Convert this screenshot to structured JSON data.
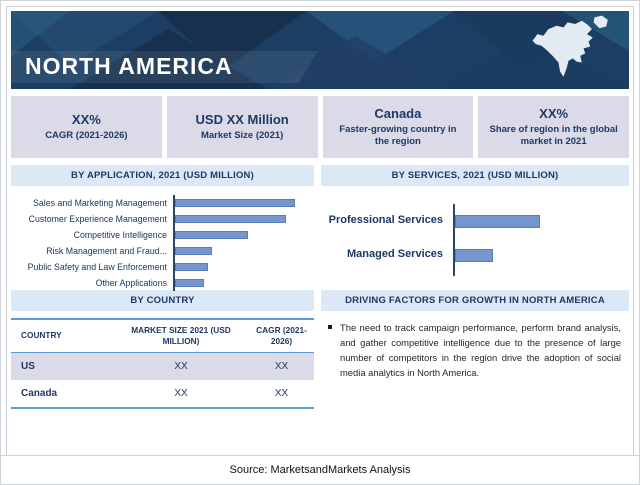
{
  "header": {
    "title": "NORTH AMERICA"
  },
  "stat_cards": [
    {
      "value": "XX%",
      "label": "CAGR (2021-2026)"
    },
    {
      "value": "USD XX Million",
      "label": "Market Size (2021)"
    },
    {
      "value": "Canada",
      "label": "Faster-growing country in the region"
    },
    {
      "value": "XX%",
      "label": "Share of region in the global market in 2021"
    }
  ],
  "sections": {
    "by_application": "BY APPLICATION, 2021 (USD MILLION)",
    "by_services": "BY SERVICES, 2021 (USD MILLION)",
    "by_country": "BY COUNTRY",
    "driving_factors": "DRIVING FACTORS FOR GROWTH IN NORTH AMERICA"
  },
  "chart_data": [
    {
      "type": "bar",
      "orientation": "horizontal",
      "title": "BY APPLICATION, 2021 (USD MILLION)",
      "categories": [
        "Sales and Marketing Management",
        "Customer Experience Management",
        "Competitive Intelligence",
        "Risk Management and Fraud...",
        "Public Safety and Law Enforcement",
        "Other Applications"
      ],
      "values_relative": [
        100,
        93,
        61,
        31,
        28,
        24
      ],
      "values_labeled": false,
      "note": "Axis values not shown (XX placeholders); values are relative bar lengths, max = 100",
      "bar_color": "#7697ce",
      "grid": false,
      "legend": false
    },
    {
      "type": "bar",
      "orientation": "horizontal",
      "title": "BY SERVICES, 2021 (USD MILLION)",
      "categories": [
        "Professional Services",
        "Managed Services"
      ],
      "values_relative": [
        100,
        44
      ],
      "values_labeled": false,
      "note": "Axis values not shown; values are relative bar lengths, max = 100",
      "bar_color": "#7697ce",
      "grid": false,
      "legend": false
    }
  ],
  "country_table": {
    "headers": [
      "COUNTRY",
      "MARKET SIZE 2021 (USD MILLION)",
      "CAGR (2021-2026)"
    ],
    "rows": [
      {
        "country": "US",
        "market_size": "XX",
        "cagr": "XX"
      },
      {
        "country": "Canada",
        "market_size": "XX",
        "cagr": "XX"
      }
    ]
  },
  "driving_factors": {
    "bullets": [
      "The need to track campaign performance, perform brand analysis, and gather competitive intelligence due to the presence of large number of competitors in the region drive the adoption of social media analytics in North America."
    ]
  },
  "source": "Source: MarketsandMarkets Analysis",
  "colors": {
    "header_bg": "#1c3e63",
    "card_bg": "#dadae9",
    "section_bg": "#dbe8f6",
    "bar": "#7697ce",
    "navy_text": "#1f3864",
    "table_border": "#5b9bd5"
  }
}
